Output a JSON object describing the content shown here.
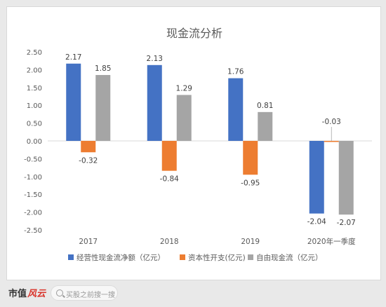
{
  "chart_data": {
    "type": "bar",
    "title": "现金流分析",
    "categories": [
      "2017",
      "2018",
      "2019",
      "2020年一季度"
    ],
    "series": [
      {
        "name": "经营性现金流净额（亿元）",
        "color": "#4472C4",
        "values": [
          2.17,
          2.13,
          1.76,
          -2.04
        ]
      },
      {
        "name": "资本性开支(亿元)",
        "color": "#ED7D31",
        "values": [
          -0.32,
          -0.84,
          -0.95,
          -0.03
        ]
      },
      {
        "name": "自由现金流（亿元）",
        "color": "#A5A5A5",
        "values": [
          1.85,
          1.29,
          0.81,
          -2.07
        ]
      }
    ],
    "data_labels": [
      [
        "2.17",
        "2.13",
        "1.76",
        "-2.04"
      ],
      [
        "-0.32",
        "-0.84",
        "-0.95",
        "-0.03"
      ],
      [
        "1.85",
        "1.29",
        "0.81",
        "-2.07"
      ]
    ],
    "y_ticks": [
      "2.50",
      "2.00",
      "1.50",
      "1.00",
      "0.50",
      "0.00",
      "-0.50",
      "-1.00",
      "-1.50",
      "-2.00",
      "-2.50"
    ],
    "ylim": [
      -2.5,
      2.5
    ],
    "grid": false,
    "legend_position": "bottom"
  },
  "footer": {
    "brand_text": "市值",
    "brand_accent": "风云",
    "search_placeholder": "买股之前搜一搜"
  }
}
